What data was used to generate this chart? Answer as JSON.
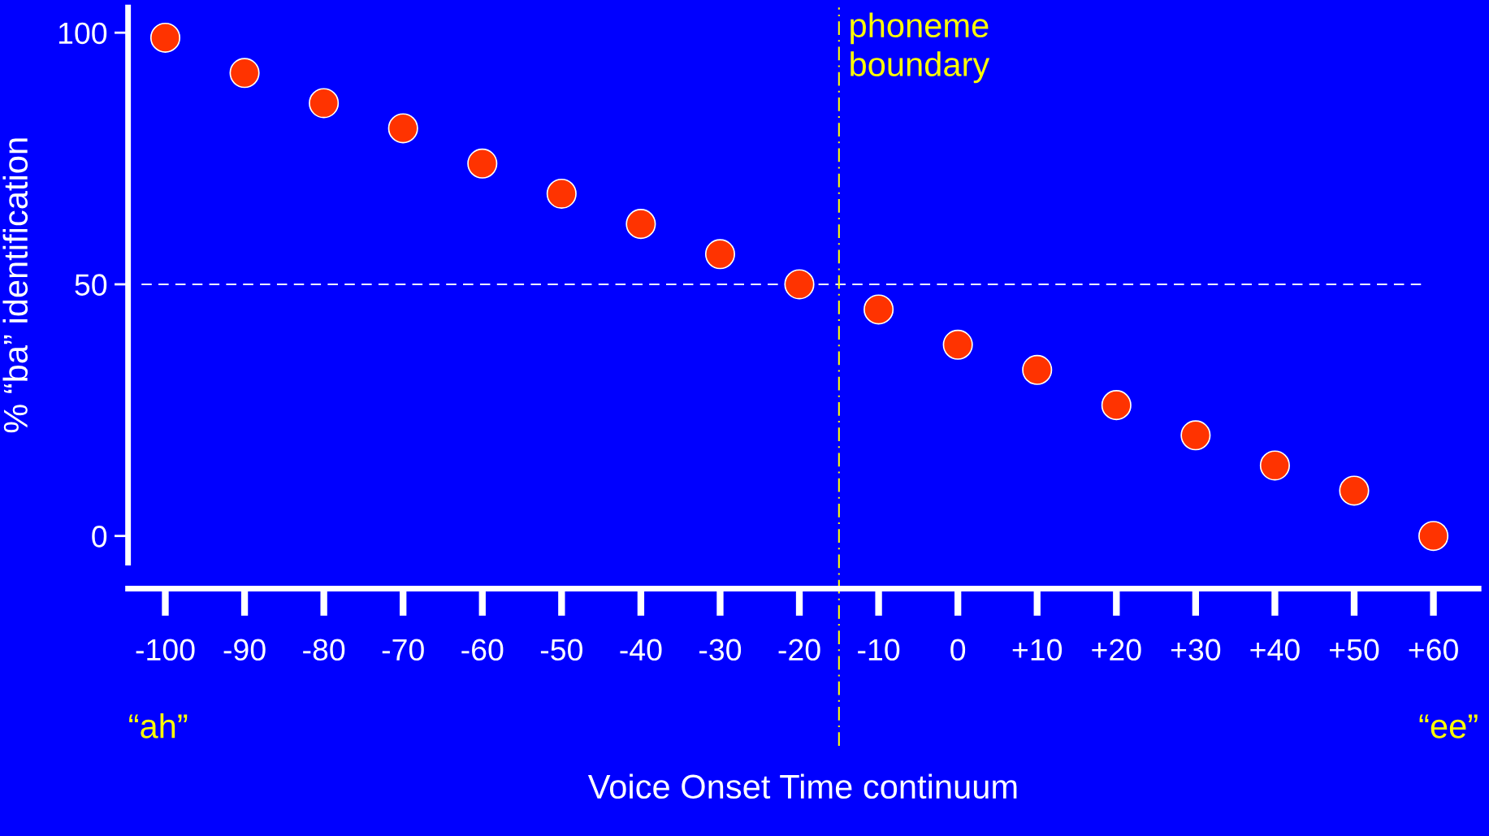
{
  "chart_data": {
    "type": "scatter",
    "xlabel": "Voice Onset Time continuum",
    "ylabel": "% “ba” identification",
    "x": [
      -100,
      -90,
      -80,
      -70,
      -60,
      -50,
      -40,
      -30,
      -20,
      -10,
      0,
      10,
      20,
      30,
      40,
      50,
      60
    ],
    "series": [
      {
        "color": "#ff3300",
        "values": [
          99,
          92,
          86,
          81,
          74,
          68,
          62,
          56,
          50,
          45,
          38,
          33,
          26,
          20,
          14,
          9,
          0
        ]
      }
    ],
    "marker": "circle",
    "xlim": [
      -104.7,
      65.7
    ],
    "xticks": [
      -100,
      -90,
      -80,
      -70,
      -60,
      -50,
      -40,
      -30,
      -20,
      -10,
      0,
      {
        "value": 10,
        "label": "+10"
      },
      {
        "value": 20,
        "label": "+20"
      },
      {
        "value": 30,
        "label": "+30"
      },
      {
        "value": 40,
        "label": "+40"
      },
      {
        "value": 50,
        "label": "+50"
      },
      {
        "value": 60,
        "label": "+60"
      }
    ],
    "ylim": [
      -5.3,
      105
    ],
    "yticks": [
      0,
      50,
      100
    ],
    "ref_lines": [
      {
        "axis": "y",
        "value": 50,
        "color": "#ffffff",
        "line_style": "dashed"
      },
      {
        "axis": "x",
        "value": -15,
        "label": "phoneme\nboundary",
        "color": "#ffff00",
        "line_style": "dashdot"
      }
    ],
    "annotations": [
      "“ah”",
      "“ee”"
    ],
    "grid": false
  }
}
